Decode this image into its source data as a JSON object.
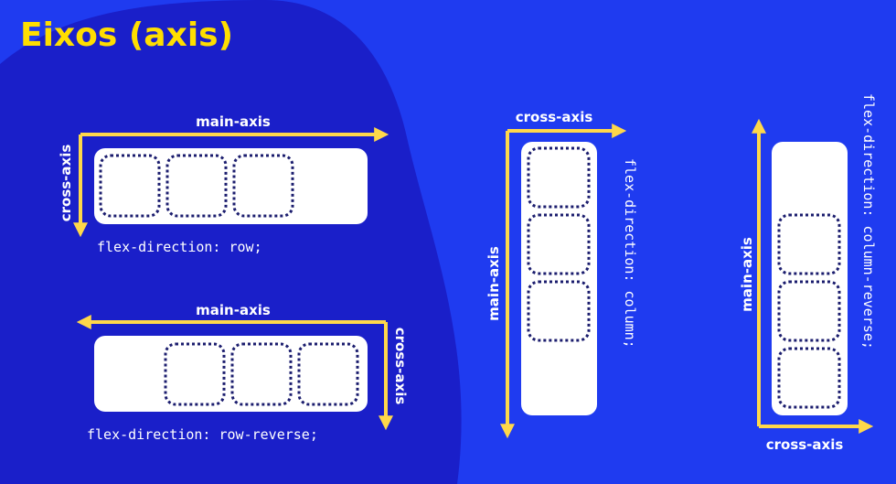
{
  "title": "Eixos (axis)",
  "colors": {
    "background": "#1f3bf0",
    "blob": "#1a1fc9",
    "accent": "#ffd84a",
    "title": "#ffde00",
    "container": "#ffffff",
    "item_border": "#1b1d6e"
  },
  "diagrams": {
    "row": {
      "main_axis_label": "main-axis",
      "cross_axis_label": "cross-axis",
      "code": "flex-direction: row;",
      "item_count": 3
    },
    "row_reverse": {
      "main_axis_label": "main-axis",
      "cross_axis_label": "cross-axis",
      "code": "flex-direction: row-reverse;",
      "item_count": 3
    },
    "column": {
      "main_axis_label": "main-axis",
      "cross_axis_label": "cross-axis",
      "code": "flex-direction: column;",
      "item_count": 3
    },
    "column_reverse": {
      "main_axis_label": "main-axis",
      "cross_axis_label": "cross-axis",
      "code": "flex-direction: column-reverse;",
      "item_count": 3
    }
  }
}
